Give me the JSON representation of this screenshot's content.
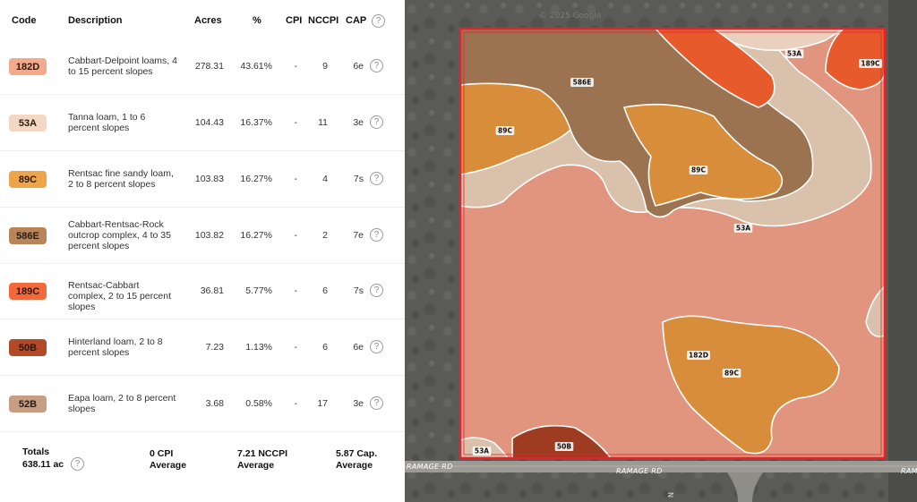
{
  "table": {
    "headers": {
      "code": "Code",
      "description": "Description",
      "acres": "Acres",
      "pct": "%",
      "cpi": "CPI",
      "nccpi": "NCCPI",
      "cap": "CAP"
    },
    "rows": [
      {
        "code": "182D",
        "color": "#f2a98c",
        "description": "Cabbart-Delpoint loams, 4 to 15 percent slopes",
        "acres": "278.31",
        "pct": "43.61%",
        "cpi": "-",
        "nccpi": "9",
        "cap": "6e"
      },
      {
        "code": "53A",
        "color": "#f4d8c4",
        "description": "Tanna loam, 1 to 6 percent slopes",
        "acres": "104.43",
        "pct": "16.37%",
        "cpi": "-",
        "nccpi": "11",
        "cap": "3e"
      },
      {
        "code": "89C",
        "color": "#eea44a",
        "description": "Rentsac fine sandy loam, 2 to 8 percent slopes",
        "acres": "103.83",
        "pct": "16.27%",
        "cpi": "-",
        "nccpi": "4",
        "cap": "7s"
      },
      {
        "code": "586E",
        "color": "#b8855a",
        "description": "Cabbart-Rentsac-Rock outcrop complex, 4 to 35 percent slopes",
        "acres": "103.82",
        "pct": "16.27%",
        "cpi": "-",
        "nccpi": "2",
        "cap": "7e"
      },
      {
        "code": "189C",
        "color": "#f26a3c",
        "description": "Rentsac-Cabbart complex, 2 to 15 percent slopes",
        "acres": "36.81",
        "pct": "5.77%",
        "cpi": "-",
        "nccpi": "6",
        "cap": "7s"
      },
      {
        "code": "50B",
        "color": "#b24a28",
        "description": "Hinterland loam, 2 to 8 percent slopes",
        "acres": "7.23",
        "pct": "1.13%",
        "cpi": "-",
        "nccpi": "6",
        "cap": "6e"
      },
      {
        "code": "52B",
        "color": "#c69e84",
        "description": "Eapa loam, 2 to 8 percent slopes",
        "acres": "3.68",
        "pct": "0.58%",
        "cpi": "-",
        "nccpi": "17",
        "cap": "3e"
      }
    ],
    "help_icon": "question-circle-icon"
  },
  "totals": {
    "label": "Totals",
    "acres": "638.11 ac",
    "cpi_value": "0 CPI",
    "cpi_sub": "Average",
    "nccpi_value": "7.21 NCCPI",
    "nccpi_sub": "Average",
    "cap_value": "5.87 Cap.",
    "cap_sub": "Average"
  },
  "map": {
    "boundary_color": "#e0262c",
    "road_name": "RAMAGE RD",
    "watermark": "© 2025 Google",
    "road_marker": "N",
    "labels": [
      "586E",
      "53A",
      "189C",
      "89C",
      "89C",
      "53A",
      "182D",
      "89C",
      "53A",
      "50B"
    ]
  }
}
